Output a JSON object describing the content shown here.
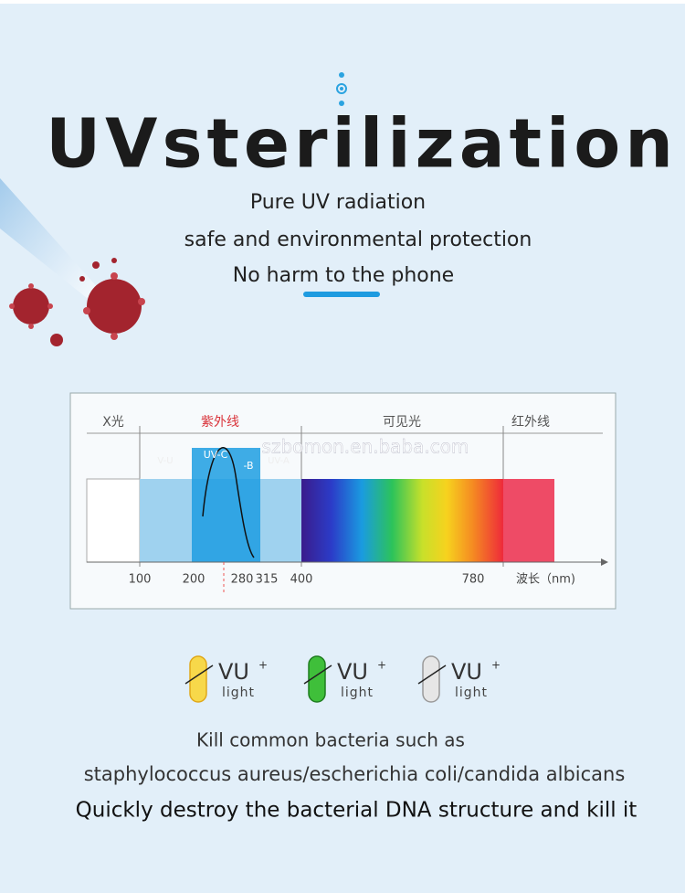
{
  "header": {
    "title": "UVsterilization",
    "lines": [
      "Pure UV radiation",
      "safe and environmental protection",
      "No harm to the phone"
    ]
  },
  "spectrum": {
    "regions": [
      "X光",
      "紫外线",
      "可见光",
      "红外线"
    ],
    "bands": [
      "V-U",
      "UV-C",
      "-B",
      "UV-A"
    ],
    "watermark": "szbomon.en.baba.com",
    "ticks": [
      100,
      200,
      280,
      315,
      400,
      780
    ],
    "axis_label": "波长（nm)"
  },
  "badges": [
    {
      "name": "VU",
      "sup": "+",
      "sub": "light"
    },
    {
      "name": "VU",
      "sup": "+",
      "sub": "light"
    },
    {
      "name": "VU",
      "sup": "+",
      "sub": "light"
    }
  ],
  "footer": {
    "lines": [
      "Kill common bacteria such as",
      "staphylococcus aureus/escherichia coli/candida albicans",
      "Quickly destroy the bacterial DNA structure and kill it"
    ]
  }
}
